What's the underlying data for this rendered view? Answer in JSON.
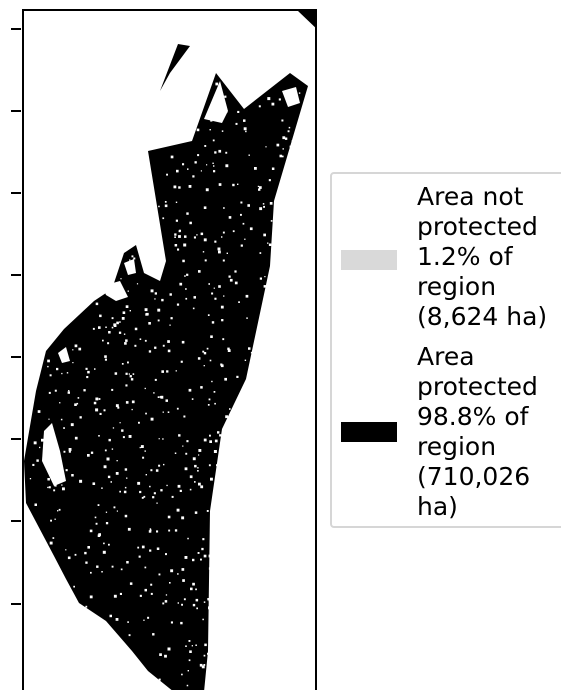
{
  "legend": {
    "items": [
      {
        "label": "Area not\nprotected\n1.2% of\nregion\n(8,624 ha)",
        "color": "#d9d9d9"
      },
      {
        "label": "Area\nprotected\n98.8% of\nregion\n(710,026\nha)",
        "color": "#000000"
      }
    ]
  },
  "chart_data": {
    "type": "other",
    "map_type": "protected-area coverage map",
    "categories": [
      "Area not protected",
      "Area protected"
    ],
    "values_percent": [
      1.2,
      98.8
    ],
    "values_ha": [
      8624,
      710026
    ],
    "colors": [
      "#d9d9d9",
      "#000000"
    ],
    "legend_position": "right",
    "y_axis_ticks": 8,
    "tick_labels": []
  }
}
